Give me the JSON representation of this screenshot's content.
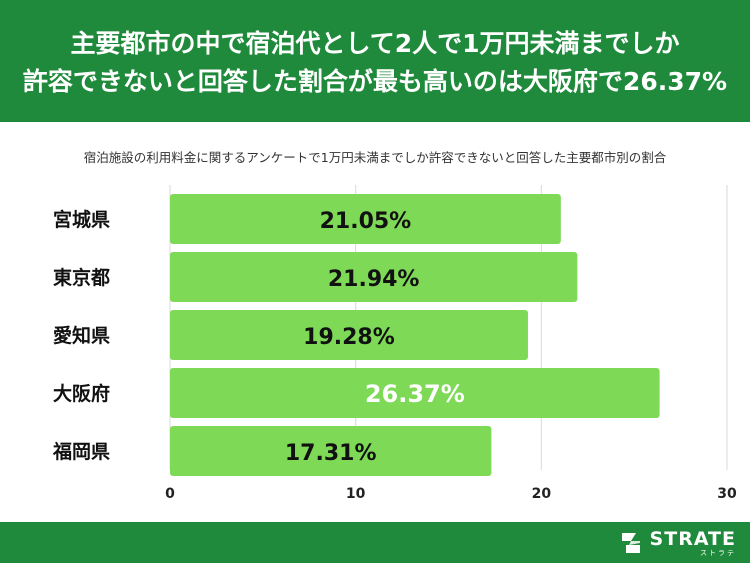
{
  "header": {
    "title_line1": "主要都市の中で宿泊代として2人で1万円未満までしか",
    "title_line2": "許容できないと回答した割合が最も高いのは大阪府で26.37%"
  },
  "chart_data": {
    "type": "bar",
    "orientation": "horizontal",
    "title": "宿泊施設の利用料金に関するアンケートで1万円未満までしか許容できないと回答した主要都市別の割合",
    "categories": [
      "宮城県",
      "東京都",
      "愛知県",
      "大阪府",
      "福岡県"
    ],
    "values": [
      21.05,
      21.94,
      19.28,
      26.37,
      17.31
    ],
    "labels": [
      "21.05%",
      "21.94%",
      "19.28%",
      "26.37%",
      "17.31%"
    ],
    "highlight_index": 3,
    "xlim": [
      0,
      30
    ],
    "xticks": [
      0,
      10,
      20,
      30
    ],
    "grid": true,
    "bar_color": "#7ed957",
    "label_color": "#111111",
    "highlight_label_color": "#ffffff"
  },
  "footer": {
    "brand": "STRATE",
    "brand_kana": "ストラテ",
    "color": "#1f8a3b"
  }
}
